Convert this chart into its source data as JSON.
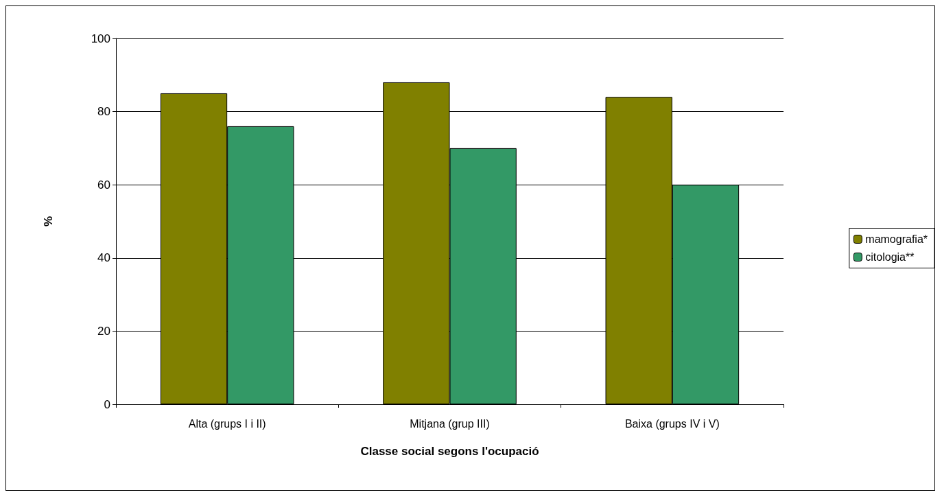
{
  "chart_data": {
    "type": "bar",
    "xlabel": "Classe social segons l'ocupació",
    "ylabel": "%",
    "categories": [
      "Alta (grups I i II)",
      "Mitjana (grup III)",
      "Baixa (grups IV i V)"
    ],
    "series": [
      {
        "name": "mamografia*",
        "color": "#808000",
        "values": [
          85,
          88,
          84
        ]
      },
      {
        "name": "citologia**",
        "color": "#339966",
        "values": [
          76,
          70,
          60
        ]
      }
    ],
    "ylim": [
      0,
      100
    ],
    "yticks": [
      0,
      20,
      40,
      60,
      80,
      100
    ],
    "grid": "y",
    "legend": "right"
  }
}
